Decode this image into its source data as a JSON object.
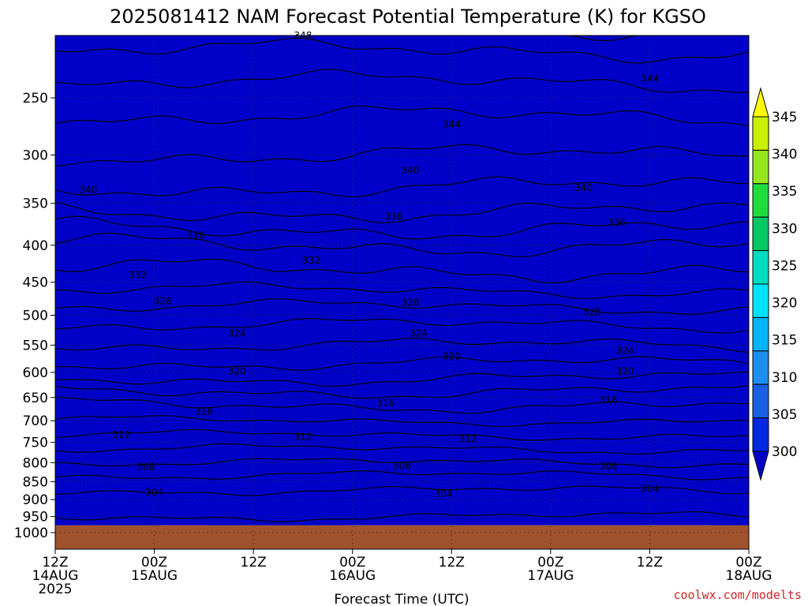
{
  "chart_data": {
    "type": "heatmap",
    "title": "2025081412 NAM Forecast Potential Temperature (K) for KGSO",
    "xlabel": "Forecast Time (UTC)",
    "ylabel": "",
    "credit": "coolwx.com/modelts",
    "y_scale": "log pressure (inverted)",
    "ylim": [
      1000,
      200
    ],
    "y_ticks": [
      250,
      300,
      350,
      400,
      450,
      500,
      550,
      600,
      650,
      700,
      750,
      800,
      850,
      900,
      950,
      1000
    ],
    "xlim": [
      "2025-08-14T12",
      "2025-08-18T00"
    ],
    "x_ticks": [
      {
        "time": "2025-08-14T12",
        "lines": [
          "12Z",
          "14AUG",
          "2025"
        ]
      },
      {
        "time": "2025-08-15T00",
        "lines": [
          "00Z",
          "15AUG"
        ]
      },
      {
        "time": "2025-08-15T12",
        "lines": [
          "12Z"
        ]
      },
      {
        "time": "2025-08-16T00",
        "lines": [
          "00Z",
          "16AUG"
        ]
      },
      {
        "time": "2025-08-16T12",
        "lines": [
          "12Z"
        ]
      },
      {
        "time": "2025-08-17T00",
        "lines": [
          "00Z",
          "17AUG"
        ]
      },
      {
        "time": "2025-08-17T12",
        "lines": [
          "12Z"
        ]
      },
      {
        "time": "2025-08-18T00",
        "lines": [
          "00Z",
          "18AUG"
        ]
      }
    ],
    "grid": true,
    "ground_color": "#a0522d",
    "colorbar": {
      "labels": [
        300,
        305,
        310,
        315,
        320,
        325,
        330,
        335,
        340,
        345
      ],
      "colors": [
        "#0000c8",
        "#0028e0",
        "#1a60e6",
        "#1e8ef0",
        "#00b4ff",
        "#00e4ff",
        "#00dcc0",
        "#00c864",
        "#1edc3c",
        "#96e61e",
        "#c8f000",
        "#ffff00"
      ]
    },
    "contour_labels": [
      {
        "value": 348,
        "time": "2025-08-15T18",
        "p": 205
      },
      {
        "value": 344,
        "time": "2025-08-17T12",
        "p": 235
      },
      {
        "value": 344,
        "time": "2025-08-16T12",
        "p": 272
      },
      {
        "value": 340,
        "time": "2025-08-14T16",
        "p": 335
      },
      {
        "value": 340,
        "time": "2025-08-16T07",
        "p": 315
      },
      {
        "value": 340,
        "time": "2025-08-17T04",
        "p": 333
      },
      {
        "value": 336,
        "time": "2025-08-15T05",
        "p": 388
      },
      {
        "value": 336,
        "time": "2025-08-16T05",
        "p": 365
      },
      {
        "value": 336,
        "time": "2025-08-17T08",
        "p": 372
      },
      {
        "value": 332,
        "time": "2025-08-14T22",
        "p": 440
      },
      {
        "value": 332,
        "time": "2025-08-15T19",
        "p": 420
      },
      {
        "value": 328,
        "time": "2025-08-15T01",
        "p": 478
      },
      {
        "value": 328,
        "time": "2025-08-16T07",
        "p": 480
      },
      {
        "value": 328,
        "time": "2025-08-17T05",
        "p": 495
      },
      {
        "value": 324,
        "time": "2025-08-15T10",
        "p": 530
      },
      {
        "value": 324,
        "time": "2025-08-16T08",
        "p": 530
      },
      {
        "value": 324,
        "time": "2025-08-17T09",
        "p": 560
      },
      {
        "value": 320,
        "time": "2025-08-15T10",
        "p": 598
      },
      {
        "value": 320,
        "time": "2025-08-16T12",
        "p": 570
      },
      {
        "value": 320,
        "time": "2025-08-17T09",
        "p": 598
      },
      {
        "value": 316,
        "time": "2025-08-15T06",
        "p": 680
      },
      {
        "value": 316,
        "time": "2025-08-16T04",
        "p": 662
      },
      {
        "value": 316,
        "time": "2025-08-17T07",
        "p": 655
      },
      {
        "value": 312,
        "time": "2025-08-14T20",
        "p": 732
      },
      {
        "value": 312,
        "time": "2025-08-15T18",
        "p": 737
      },
      {
        "value": 312,
        "time": "2025-08-16T14",
        "p": 742
      },
      {
        "value": 308,
        "time": "2025-08-14T23",
        "p": 812
      },
      {
        "value": 308,
        "time": "2025-08-16T06",
        "p": 807
      },
      {
        "value": 308,
        "time": "2025-08-17T07",
        "p": 810
      },
      {
        "value": 304,
        "time": "2025-08-15T00",
        "p": 880
      },
      {
        "value": 304,
        "time": "2025-08-16T11",
        "p": 884
      },
      {
        "value": 304,
        "time": "2025-08-17T12",
        "p": 870
      }
    ],
    "level_profile": [
      {
        "p": 215,
        "theta": 348
      },
      {
        "p": 250,
        "theta": 345
      },
      {
        "p": 300,
        "theta": 342
      },
      {
        "p": 350,
        "theta": 339
      },
      {
        "p": 400,
        "theta": 334
      },
      {
        "p": 450,
        "theta": 331
      },
      {
        "p": 500,
        "theta": 327
      },
      {
        "p": 550,
        "theta": 324
      },
      {
        "p": 600,
        "theta": 321
      },
      {
        "p": 650,
        "theta": 317
      },
      {
        "p": 700,
        "theta": 314
      },
      {
        "p": 750,
        "theta": 311
      },
      {
        "p": 800,
        "theta": 308
      },
      {
        "p": 850,
        "theta": 305
      },
      {
        "p": 900,
        "theta": 303
      },
      {
        "p": 950,
        "theta": 302
      },
      {
        "p": 975,
        "theta": 300
      }
    ]
  }
}
